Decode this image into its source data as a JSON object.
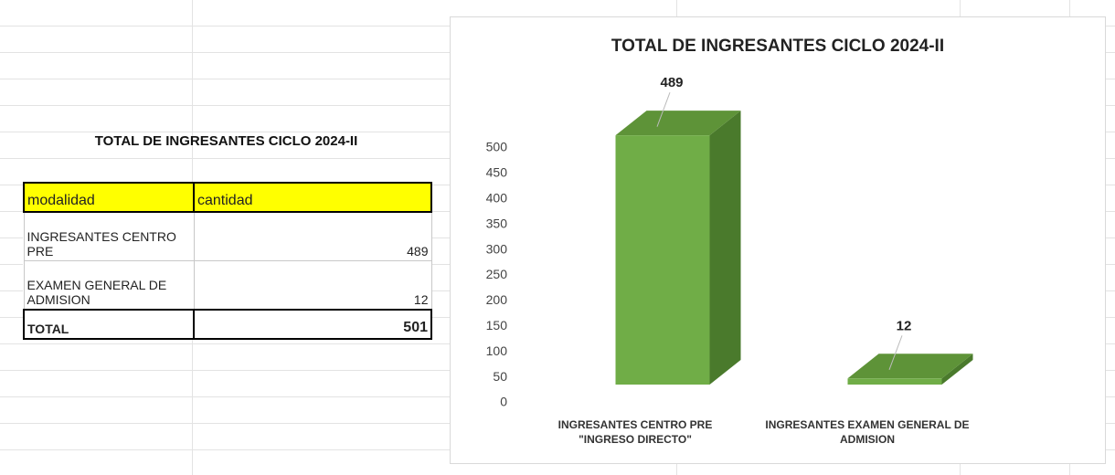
{
  "table": {
    "title": "TOTAL DE INGRESANTES CICLO 2024-II",
    "header": [
      "modalidad",
      "cantidad"
    ],
    "rows": [
      [
        "INGRESANTES CENTRO PRE",
        "489"
      ],
      [
        "EXAMEN GENERAL DE ADMISION",
        "12"
      ]
    ],
    "total": [
      "TOTAL",
      "501"
    ]
  },
  "chart_data": {
    "type": "bar3d",
    "title": "TOTAL DE INGRESANTES CICLO 2024-II",
    "categories": [
      "INGRESANTES CENTRO PRE \"INGRESO DIRECTO\"",
      "INGRESANTES EXAMEN GENERAL DE ADMISION"
    ],
    "values": [
      489,
      12
    ],
    "color": "#70ad47",
    "ylim": [
      0,
      500
    ],
    "yticks": [
      0,
      50,
      100,
      150,
      200,
      250,
      300,
      350,
      400,
      450,
      500
    ],
    "grid": false
  }
}
